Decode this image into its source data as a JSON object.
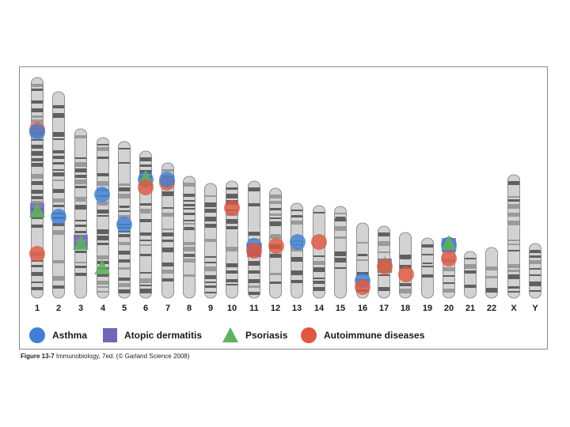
{
  "colors": {
    "asthma": "#3f80d4",
    "atopic_dermatitis": "#6e68b8",
    "psoriasis": "#5fb35c",
    "autoimmune": "#e0573e",
    "chromosome_light": "#d2d2d2",
    "chromosome_band": "#606060",
    "chromosome_mid": "#9a9a9a"
  },
  "chromosomes": [
    {
      "label": "1"
    },
    {
      "label": "2"
    },
    {
      "label": "3"
    },
    {
      "label": "4"
    },
    {
      "label": "5"
    },
    {
      "label": "6"
    },
    {
      "label": "7"
    },
    {
      "label": "8"
    },
    {
      "label": "9"
    },
    {
      "label": "10"
    },
    {
      "label": "11"
    },
    {
      "label": "12"
    },
    {
      "label": "13"
    },
    {
      "label": "14"
    },
    {
      "label": "15"
    },
    {
      "label": "16"
    },
    {
      "label": "17"
    },
    {
      "label": "18"
    },
    {
      "label": "19"
    },
    {
      "label": "20"
    },
    {
      "label": "21"
    },
    {
      "label": "22"
    },
    {
      "label": "X"
    },
    {
      "label": "Y"
    }
  ],
  "legend": {
    "asthma": {
      "label": "Asthma",
      "icon": "circle-icon"
    },
    "atopic_dermatitis": {
      "label": "Atopic dermatitis",
      "icon": "square-icon"
    },
    "psoriasis": {
      "label": "Psoriasis",
      "icon": "triangle-icon"
    },
    "autoimmune": {
      "label": "Autoimmune diseases",
      "icon": "circle-icon"
    }
  },
  "caption": {
    "figure": "Figure 13-7",
    "text": " Immunobiology, 7ed. (© Garland Science 2008)"
  }
}
